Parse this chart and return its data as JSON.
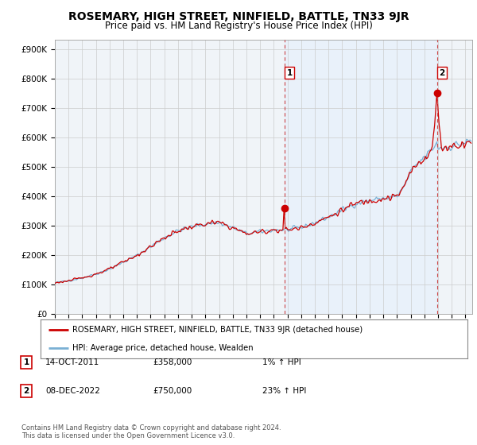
{
  "title": "ROSEMARY, HIGH STREET, NINFIELD, BATTLE, TN33 9JR",
  "subtitle": "Price paid vs. HM Land Registry's House Price Index (HPI)",
  "title_fontsize": 10,
  "subtitle_fontsize": 8.5,
  "ylabel_ticks": [
    "£0",
    "£100K",
    "£200K",
    "£300K",
    "£400K",
    "£500K",
    "£600K",
    "£700K",
    "£800K",
    "£900K"
  ],
  "ytick_values": [
    0,
    100000,
    200000,
    300000,
    400000,
    500000,
    600000,
    700000,
    800000,
    900000
  ],
  "ylim": [
    0,
    930000
  ],
  "xlim_start": 1995.0,
  "xlim_end": 2025.5,
  "sale1_x": 2011.79,
  "sale1_y": 358000,
  "sale2_x": 2022.92,
  "sale2_y": 750000,
  "sale1_date": "14-OCT-2011",
  "sale1_price": "£358,000",
  "sale1_hpi": "1% ↑ HPI",
  "sale2_date": "08-DEC-2022",
  "sale2_price": "£750,000",
  "sale2_hpi": "23% ↑ HPI",
  "line_color_red": "#cc0000",
  "line_color_blue": "#7ab0d4",
  "dashed_color": "#cc4444",
  "shade_color": "#ddeeff",
  "legend_label_red": "ROSEMARY, HIGH STREET, NINFIELD, BATTLE, TN33 9JR (detached house)",
  "legend_label_blue": "HPI: Average price, detached house, Wealden",
  "footnote": "Contains HM Land Registry data © Crown copyright and database right 2024.\nThis data is licensed under the Open Government Licence v3.0.",
  "bg_color": "#ffffff",
  "grid_color": "#cccccc",
  "plot_bg": "#f0f4f8"
}
